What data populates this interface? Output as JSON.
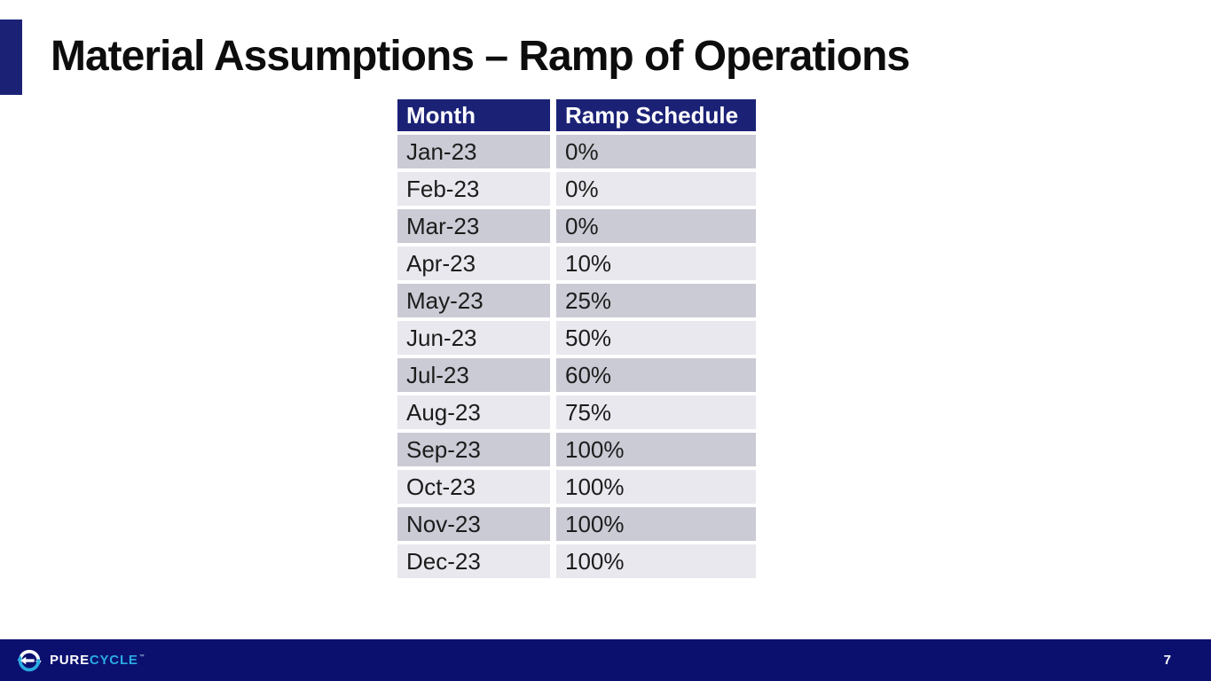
{
  "slide": {
    "title": "Material Assumptions – Ramp of Operations",
    "page_number": "7"
  },
  "table": {
    "columns": [
      "Month",
      "Ramp Schedule"
    ],
    "rows": [
      [
        "Jan-23",
        "0%"
      ],
      [
        "Feb-23",
        "0%"
      ],
      [
        "Mar-23",
        "0%"
      ],
      [
        "Apr-23",
        "10%"
      ],
      [
        "May-23",
        "25%"
      ],
      [
        "Jun-23",
        "50%"
      ],
      [
        "Jul-23",
        "60%"
      ],
      [
        "Aug-23",
        "75%"
      ],
      [
        "Sep-23",
        "100%"
      ],
      [
        "Oct-23",
        "100%"
      ],
      [
        "Nov-23",
        "100%"
      ],
      [
        "Dec-23",
        "100%"
      ]
    ]
  },
  "footer": {
    "logo_pure": "PURE",
    "logo_cycle": "CYCLE",
    "trademark": "™"
  },
  "icons": {
    "logo_icon": "recycle-arrows-icon"
  },
  "colors": {
    "navy": "#1b2276",
    "footer_navy": "#0b106f",
    "row_dark": "#cacbd5",
    "row_light": "#e8e8ee",
    "cyan": "#29abe2"
  }
}
